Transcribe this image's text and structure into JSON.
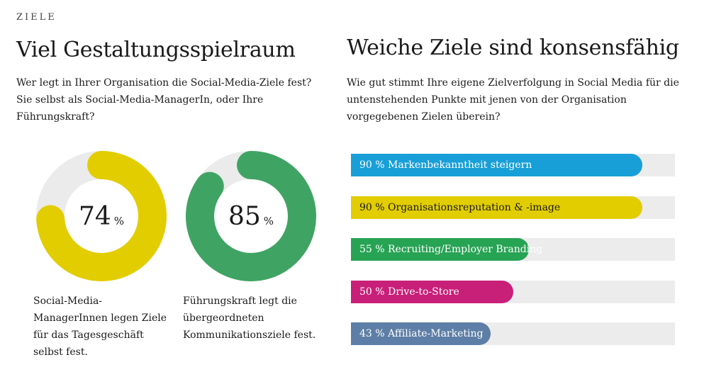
{
  "eyebrow": "ZIELE",
  "left": {
    "title": "Viel Gestaltungsspielraum",
    "subtitle": "Wer legt in Ihrer Organisation die Social-Media-Ziele fest? Sie selbst als Social-Media-ManagerIn, oder Ihre Führungskraft?"
  },
  "right": {
    "title": "Weiche Ziele sind konsensfähig",
    "subtitle": "Wie gut stimmt Ihre eigene Zielverfolgung in Social Media für die untenstehenden Punkte mit jenen von der Organisation vorgegebenen Zielen überein?"
  },
  "chart_data": [
    {
      "type": "pie",
      "variant": "donut",
      "value": 74,
      "value_label": "74",
      "unit": "%",
      "color": "#e2cd00",
      "track_color": "#ebebeb",
      "caption": "Social-Media-ManagerInnen legen Ziele für das Tages­geschäft selbst fest."
    },
    {
      "type": "pie",
      "variant": "donut",
      "value": 85,
      "value_label": "85",
      "unit": "%",
      "color": "#3fa463",
      "track_color": "#ebebeb",
      "caption": "Führungskraft legt die über­geordneten Kommunikations­ziele fest."
    },
    {
      "type": "bar",
      "orientation": "horizontal",
      "xlim": [
        0,
        100
      ],
      "track_color": "#ececec",
      "bars": [
        {
          "value": 90,
          "label": "90 % Markenbekanntheit steigern",
          "color": "#189fd7"
        },
        {
          "value": 90,
          "label": "90 % Organisationsreputation & -image",
          "color": "#e2cd00"
        },
        {
          "value": 55,
          "label": "55 % Recruiting/Employer Branding",
          "color": "#27a354"
        },
        {
          "value": 50,
          "label": "50 % Drive-to-Store",
          "color": "#c81f79"
        },
        {
          "value": 43,
          "label": "43 % Affiliate-Marketing",
          "color": "#5d7ea6"
        }
      ]
    }
  ]
}
